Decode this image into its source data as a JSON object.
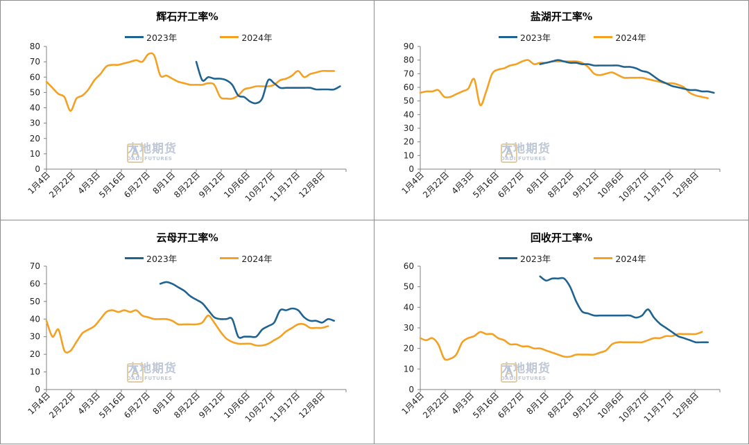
{
  "colors": {
    "s2023": "#1F6391",
    "s2024": "#F5A020",
    "axis": "#808080",
    "border": "#8c8c8c"
  },
  "watermark": {
    "cn": "大地期货",
    "en": "DADI FUTURES"
  },
  "chart_data": [
    {
      "type": "line",
      "title": "辉石开工率%",
      "xlabel": "",
      "ylabel": "",
      "ylim": [
        0,
        80
      ],
      "ystep": 10,
      "x_ticks": [
        "1月4日",
        "2月22日",
        "4月3日",
        "5月16日",
        "6月27日",
        "8月1日",
        "8月22日",
        "9月12日",
        "10月6日",
        "10月27日",
        "11月17日",
        "12月8日"
      ],
      "x_range": [
        0,
        50
      ],
      "legend": "top-center",
      "series": [
        {
          "name": "2023年",
          "color": "#1F6391",
          "x": [
            25.0,
            26.0,
            27.0,
            28.0,
            29.0,
            30.0,
            31.0,
            32.0,
            33.0,
            34.0,
            35.0,
            36.0,
            37.0,
            38.0,
            39.0,
            40.0,
            41.0,
            42.0,
            43.0,
            44.0,
            45.0,
            46.0,
            47.0,
            48.0,
            49.0
          ],
          "y": [
            70,
            58,
            60,
            59,
            59,
            58,
            55,
            48,
            47,
            44,
            43,
            46,
            58,
            56,
            53,
            53,
            53,
            53,
            53,
            53,
            52,
            52,
            52,
            52,
            54
          ]
        },
        {
          "name": "2024年",
          "color": "#F5A020",
          "x": [
            0.0,
            1.0,
            2.0,
            3.0,
            4.0,
            5.0,
            6.0,
            7.0,
            8.0,
            9.0,
            10.0,
            11.0,
            12.0,
            13.0,
            14.0,
            15.0,
            16.0,
            17.0,
            18.0,
            19.0,
            20.0,
            21.0,
            22.0,
            23.0,
            24.0,
            25.0,
            26.0,
            27.0,
            28.0,
            29.0,
            30.0,
            31.0,
            32.0,
            33.0,
            34.0,
            35.0,
            36.0,
            37.0,
            38.0,
            39.0,
            40.0,
            41.0,
            42.0,
            43.0,
            44.0,
            45.0,
            46.0,
            47.0,
            48.0
          ],
          "y": [
            57,
            53,
            49,
            47,
            38,
            46,
            48,
            52,
            58,
            62,
            67,
            68,
            68,
            69,
            70,
            71,
            70,
            75,
            74,
            61,
            61,
            59,
            57,
            56,
            55,
            55,
            55,
            56,
            55,
            47,
            46,
            46,
            48,
            52,
            53,
            54,
            54,
            54,
            55,
            58,
            59,
            61,
            64,
            60,
            62,
            63,
            64,
            64,
            64
          ]
        }
      ]
    },
    {
      "type": "line",
      "title": "盐湖开工率%",
      "xlabel": "",
      "ylabel": "",
      "ylim": [
        0,
        90
      ],
      "ystep": 10,
      "x_ticks": [
        "1月4日",
        "2月22日",
        "4月3日",
        "5月16日",
        "6月27日",
        "8月1日",
        "8月22日",
        "9月12日",
        "10月6日",
        "10月27日",
        "11月17日",
        "12月8日"
      ],
      "x_range": [
        0,
        50
      ],
      "legend": "top-center",
      "series": [
        {
          "name": "2023年",
          "color": "#1F6391",
          "x": [
            20.0,
            21.0,
            22.0,
            23.0,
            24.0,
            25.0,
            26.0,
            27.0,
            28.0,
            29.0,
            30.0,
            31.0,
            32.0,
            33.0,
            34.0,
            35.0,
            36.0,
            37.0,
            38.0,
            39.0,
            40.0,
            41.0,
            42.0,
            43.0,
            44.0,
            45.0,
            46.0,
            47.0,
            48.0,
            49.0
          ],
          "y": [
            77,
            78,
            79,
            80,
            79,
            78,
            78,
            77,
            77,
            76,
            76,
            76,
            76,
            76,
            75,
            75,
            74,
            72,
            71,
            68,
            65,
            63,
            61,
            60,
            59,
            58,
            58,
            57,
            57,
            56
          ]
        },
        {
          "name": "2024年",
          "color": "#F5A020",
          "x": [
            0.0,
            1.0,
            2.0,
            3.0,
            4.0,
            5.0,
            6.0,
            7.0,
            8.0,
            9.0,
            10.0,
            11.0,
            12.0,
            13.0,
            14.0,
            15.0,
            16.0,
            17.0,
            18.0,
            19.0,
            20.0,
            21.0,
            22.0,
            23.0,
            24.0,
            25.0,
            26.0,
            27.0,
            28.0,
            29.0,
            30.0,
            31.0,
            32.0,
            33.0,
            34.0,
            35.0,
            36.0,
            37.0,
            38.0,
            39.0,
            40.0,
            41.0,
            42.0,
            43.0,
            44.0,
            45.0,
            46.0,
            47.0,
            48.0
          ],
          "y": [
            56,
            57,
            57,
            58,
            53,
            53,
            55,
            57,
            59,
            66,
            47,
            57,
            70,
            73,
            74,
            76,
            77,
            79,
            80,
            77,
            78,
            78,
            79,
            79,
            79,
            79,
            79,
            78,
            75,
            70,
            69,
            70,
            71,
            69,
            67,
            67,
            67,
            67,
            66,
            65,
            64,
            63,
            63,
            62,
            60,
            56,
            54,
            53,
            52
          ]
        }
      ]
    },
    {
      "type": "line",
      "title": "云母开工率%",
      "xlabel": "",
      "ylabel": "",
      "ylim": [
        0,
        70
      ],
      "ystep": 10,
      "x_ticks": [
        "1月4日",
        "2月22日",
        "4月3日",
        "5月16日",
        "6月27日",
        "8月1日",
        "8月22日",
        "9月12日",
        "10月6日",
        "10月27日",
        "11月17日",
        "12月8日"
      ],
      "x_range": [
        0,
        50
      ],
      "legend": "top-center",
      "series": [
        {
          "name": "2023年",
          "color": "#1F6391",
          "x": [
            19.0,
            20.0,
            21.0,
            22.0,
            23.0,
            24.0,
            25.0,
            26.0,
            27.0,
            28.0,
            29.0,
            30.0,
            31.0,
            32.0,
            33.0,
            34.0,
            35.0,
            36.0,
            37.0,
            38.0,
            39.0,
            40.0,
            41.0,
            42.0,
            43.0,
            44.0,
            45.0,
            46.0,
            47.0,
            48.0
          ],
          "y": [
            60,
            61,
            60,
            58,
            56,
            53,
            51,
            49,
            45,
            41,
            40,
            40,
            40,
            30,
            30,
            30,
            30,
            34,
            36,
            38,
            45,
            45,
            46,
            45,
            41,
            39,
            39,
            38,
            40,
            39
          ]
        },
        {
          "name": "2024年",
          "color": "#F5A020",
          "x": [
            0.0,
            1.0,
            2.0,
            3.0,
            4.0,
            5.0,
            6.0,
            7.0,
            8.0,
            9.0,
            10.0,
            11.0,
            12.0,
            13.0,
            14.0,
            15.0,
            16.0,
            17.0,
            18.0,
            19.0,
            20.0,
            21.0,
            22.0,
            23.0,
            24.0,
            25.0,
            26.0,
            27.0,
            28.0,
            29.0,
            30.0,
            31.0,
            32.0,
            33.0,
            34.0,
            35.0,
            36.0,
            37.0,
            38.0,
            39.0,
            40.0,
            41.0,
            42.0,
            43.0,
            44.0,
            45.0,
            46.0,
            47.0
          ],
          "y": [
            39,
            30,
            34,
            22,
            22,
            27,
            32,
            34,
            36,
            40,
            44,
            45,
            44,
            45,
            44,
            45,
            42,
            41,
            40,
            40,
            40,
            39,
            37,
            37,
            37,
            37,
            38,
            42,
            38,
            33,
            29,
            27,
            26,
            26,
            26,
            25,
            25,
            26,
            28,
            30,
            33,
            35,
            37,
            37,
            35,
            35,
            35,
            36
          ]
        }
      ]
    },
    {
      "type": "line",
      "title": "回收开工率%",
      "xlabel": "",
      "ylabel": "",
      "ylim": [
        0,
        60
      ],
      "ystep": 10,
      "x_ticks": [
        "1月4日",
        "2月22日",
        "4月3日",
        "5月16日",
        "6月27日",
        "8月1日",
        "8月22日",
        "9月12日",
        "10月6日",
        "10月27日",
        "11月17日",
        "12月8日"
      ],
      "x_range": [
        0,
        50
      ],
      "legend": "top-center",
      "series": [
        {
          "name": "2023年",
          "color": "#1F6391",
          "x": [
            20.0,
            21.0,
            22.0,
            23.0,
            24.0,
            25.0,
            26.0,
            27.0,
            28.0,
            29.0,
            30.0,
            31.0,
            32.0,
            33.0,
            34.0,
            35.0,
            36.0,
            37.0,
            38.0,
            39.0,
            40.0,
            41.0,
            42.0,
            43.0,
            44.0,
            45.0,
            46.0,
            47.0,
            48.0
          ],
          "y": [
            55,
            53,
            54,
            54,
            54,
            50,
            43,
            38,
            37,
            36,
            36,
            36,
            36,
            36,
            36,
            36,
            35,
            36,
            39,
            35,
            32,
            30,
            28,
            26,
            25,
            24,
            23,
            23,
            23
          ]
        },
        {
          "name": "2024年",
          "color": "#F5A020",
          "x": [
            0.0,
            1.0,
            2.0,
            3.0,
            4.0,
            5.0,
            6.0,
            7.0,
            8.0,
            9.0,
            10.0,
            11.0,
            12.0,
            13.0,
            14.0,
            15.0,
            16.0,
            17.0,
            18.0,
            19.0,
            20.0,
            21.0,
            22.0,
            23.0,
            24.0,
            25.0,
            26.0,
            27.0,
            28.0,
            29.0,
            30.0,
            31.0,
            32.0,
            33.0,
            34.0,
            35.0,
            36.0,
            37.0,
            38.0,
            39.0,
            40.0,
            41.0,
            42.0,
            43.0,
            44.0,
            45.0,
            46.0,
            47.0
          ],
          "y": [
            25,
            24,
            25,
            22,
            15,
            15,
            17,
            23,
            25,
            26,
            28,
            27,
            27,
            25,
            24,
            22,
            22,
            21,
            21,
            20,
            20,
            19,
            18,
            17,
            16,
            16,
            17,
            17,
            17,
            17,
            18,
            19,
            22,
            23,
            23,
            23,
            23,
            23,
            24,
            25,
            25,
            26,
            26,
            27,
            27,
            27,
            27,
            28
          ]
        }
      ]
    }
  ]
}
